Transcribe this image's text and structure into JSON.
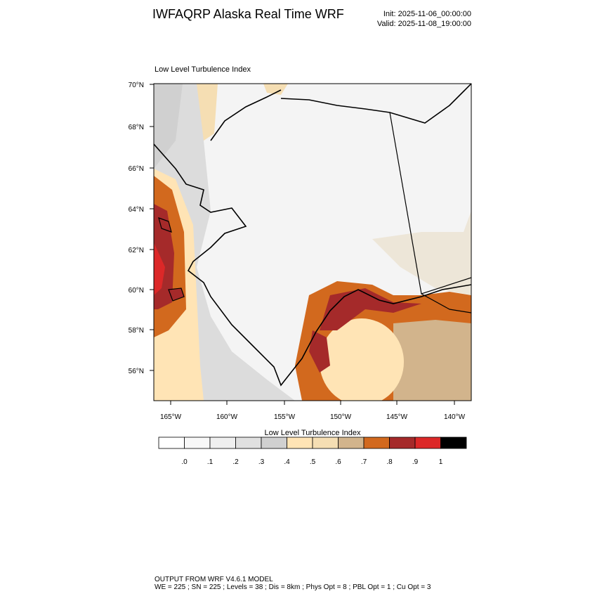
{
  "header": {
    "title": "IWFAQRP Alaska Real Time WRF",
    "init": "Init: 2025-11-06_00:00:00",
    "valid": "Valid: 2025-11-08_19:00:00"
  },
  "map": {
    "title": "Low Level Turbulence Index",
    "lat_labels": [
      "70°N",
      "68°N",
      "66°N",
      "64°N",
      "62°N",
      "60°N",
      "58°N",
      "56°N"
    ],
    "lon_labels": [
      "165°W",
      "160°W",
      "155°W",
      "150°W",
      "145°W",
      "140°W"
    ]
  },
  "colorbar": {
    "title": "Low Level Turbulence Index",
    "colors": [
      "#ffffff",
      "#f8f8f8",
      "#efefef",
      "#e0e0e0",
      "#d0d0d0",
      "#ffe4b5",
      "#f5deb3",
      "#d2b48c",
      "#d2691e",
      "#a52a2a",
      "#dc2828",
      "#000000"
    ],
    "labels": [
      ".0",
      ".1",
      ".2",
      ".3",
      ".4",
      ".5",
      ".6",
      ".7",
      ".8",
      ".9",
      "1"
    ]
  },
  "footer": {
    "line1": "OUTPUT FROM WRF V4.6.1 MODEL",
    "line2": "WE = 225 ; SN = 225 ; Levels = 38 ; Dis = 8km ; Phys Opt = 8 ; PBL Opt = 1 ; Cu Opt = 3"
  }
}
